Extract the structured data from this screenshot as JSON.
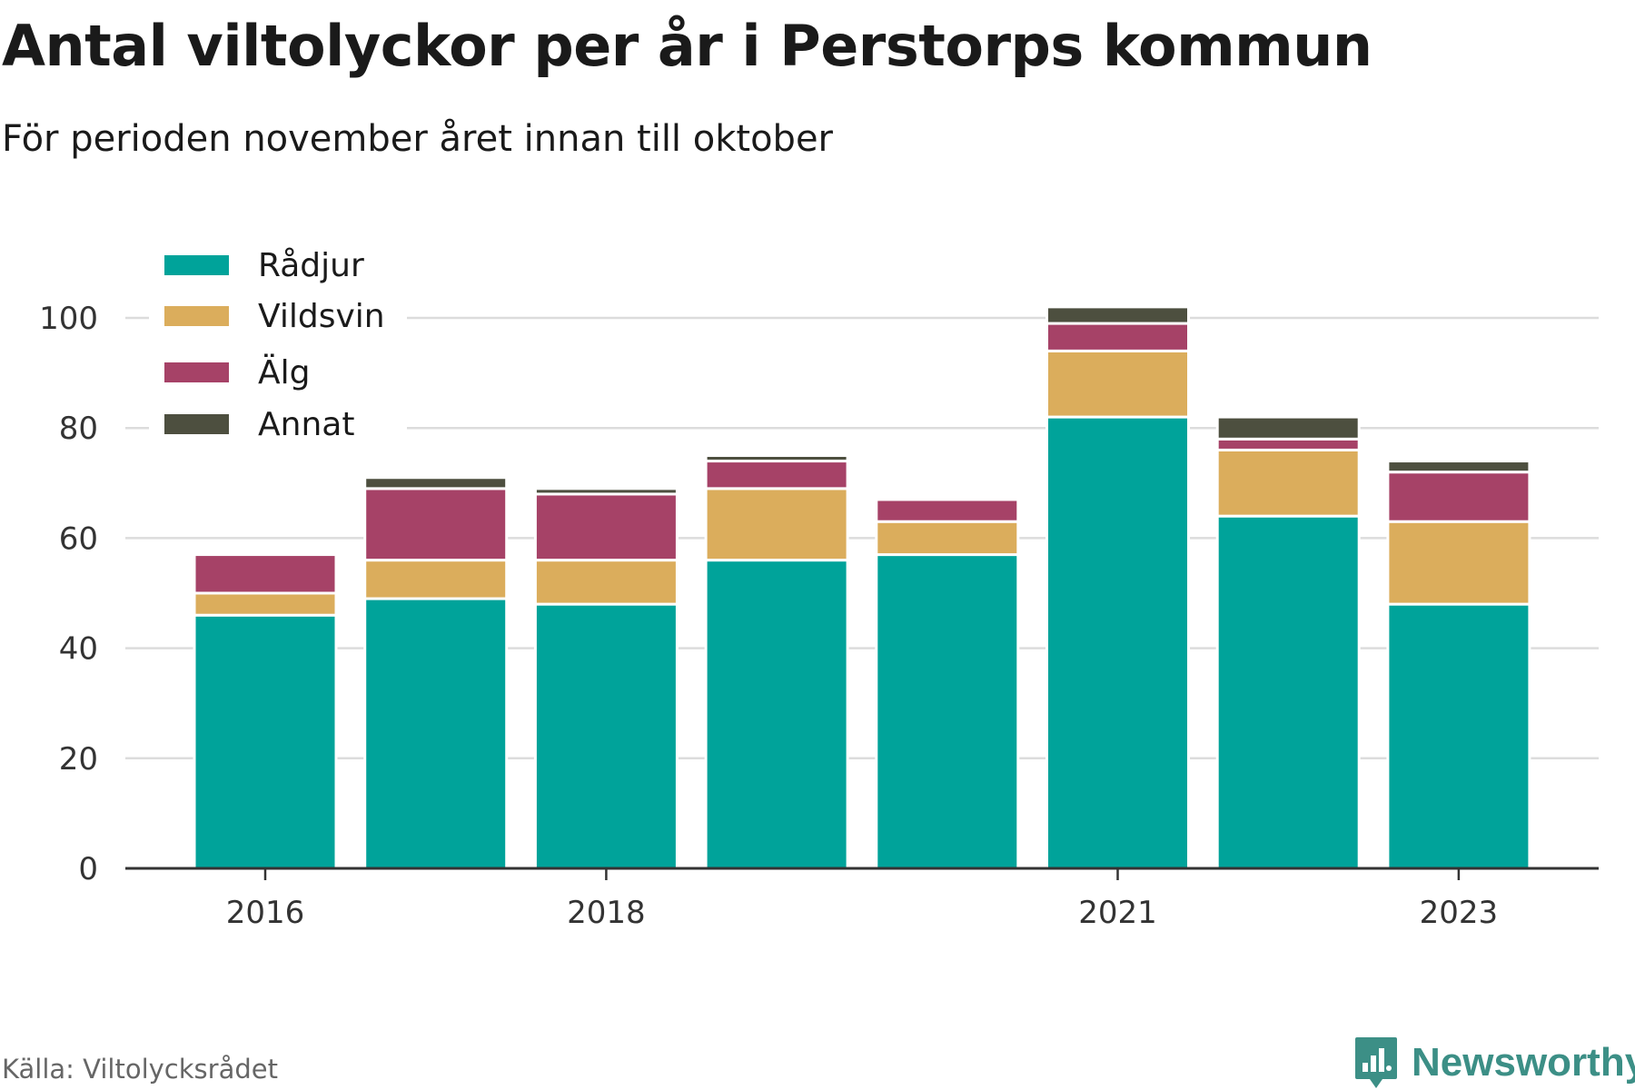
{
  "title": "Antal viltolyckor per år i Perstorps kommun",
  "subtitle": "För perioden november året innan till oktober",
  "source": "Källa: Viltolycksrådet",
  "brand": "Newsworthy",
  "chart_data": {
    "type": "bar",
    "stacked": true,
    "categories": [
      "2016",
      "2017",
      "2018",
      "2019",
      "2020",
      "2021",
      "2022",
      "2023"
    ],
    "x_tick_labels": [
      "2016",
      "2018",
      "2021",
      "2023"
    ],
    "series": [
      {
        "name": "Rådjur",
        "color": "#00a39a",
        "values": [
          46,
          49,
          48,
          56,
          57,
          82,
          64,
          48
        ]
      },
      {
        "name": "Vildsvin",
        "color": "#dbad5c",
        "values": [
          4,
          7,
          8,
          13,
          6,
          12,
          12,
          15
        ]
      },
      {
        "name": "Älg",
        "color": "#a64267",
        "values": [
          7,
          13,
          12,
          5,
          4,
          5,
          2,
          9
        ]
      },
      {
        "name": "Annat",
        "color": "#4d4f3f",
        "values": [
          0,
          2,
          1,
          1,
          0,
          3,
          4,
          2
        ]
      }
    ],
    "ylim": [
      0,
      100
    ],
    "yticks": [
      0,
      20,
      40,
      60,
      80,
      100
    ],
    "grid": true,
    "legend_position": "top-left"
  }
}
